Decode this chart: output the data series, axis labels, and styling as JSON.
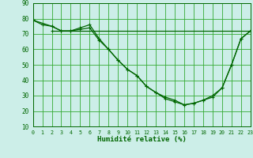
{
  "xlabel": "Humidité relative (%)",
  "bg_color": "#cceee8",
  "grid_color": "#33aa33",
  "line_color": "#006600",
  "xlim": [
    0,
    23
  ],
  "ylim": [
    10,
    90
  ],
  "yticks": [
    10,
    20,
    30,
    40,
    50,
    60,
    70,
    80,
    90
  ],
  "xticks": [
    0,
    1,
    2,
    3,
    4,
    5,
    6,
    7,
    8,
    9,
    10,
    11,
    12,
    13,
    14,
    15,
    16,
    17,
    18,
    19,
    20,
    21,
    22,
    23
  ],
  "series": [
    {
      "x": [
        0,
        1,
        2,
        3,
        4,
        5,
        6,
        7,
        8,
        9,
        10,
        11,
        12,
        13,
        14,
        15,
        16,
        17,
        18,
        19,
        20,
        21,
        22,
        23
      ],
      "y": [
        79,
        76,
        75,
        72,
        72,
        74,
        76,
        67,
        60,
        53,
        47,
        43,
        36,
        32,
        29,
        27,
        24,
        25,
        27,
        30,
        35,
        50,
        67,
        72
      ]
    },
    {
      "x": [
        0,
        2,
        3,
        4,
        5,
        6,
        7,
        8,
        9,
        10,
        11,
        12,
        13,
        14,
        15,
        16,
        17,
        18,
        19,
        20,
        21,
        22,
        23
      ],
      "y": [
        79,
        75,
        72,
        72,
        73,
        74,
        66,
        60,
        53,
        47,
        43,
        36,
        32,
        28,
        26,
        24,
        25,
        27,
        29,
        35,
        50,
        67,
        72
      ]
    },
    {
      "x": [
        2,
        23
      ],
      "y": [
        72,
        72
      ]
    }
  ]
}
